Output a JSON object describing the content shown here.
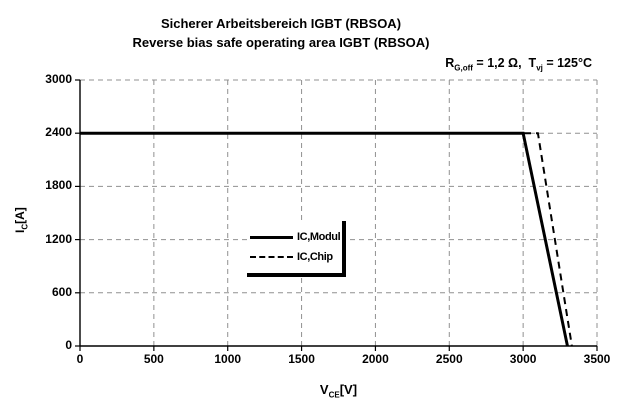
{
  "title": "Sicherer Arbeitsbereich IGBT (RBSOA)",
  "subtitle": "Reverse bias safe operating area IGBT (RBSOA)",
  "annotation": {
    "r_base": "R",
    "r_sub": "G,off",
    "r_mid": " = 1,2 Ω,",
    "t_base": "T",
    "t_sub": "vj",
    "t_end": " = 125°C"
  },
  "axis_labels": {
    "y_base": "I",
    "y_sub": "C",
    "y_rest": "[A]",
    "x_base": "V",
    "x_sub": "CE",
    "x_rest": "[V]"
  },
  "legend": {
    "items": [
      {
        "label": "IC,Modul",
        "style": "solid"
      },
      {
        "label": "IC,Chip",
        "style": "dashed"
      }
    ]
  },
  "colors": {
    "line": "#000000",
    "grid": "#909090",
    "background": "#ffffff",
    "text": "#000000"
  },
  "chart_data": {
    "type": "line",
    "title": "Sicherer Arbeitsbereich IGBT (RBSOA)",
    "subtitle": "Reverse bias safe operating area IGBT (RBSOA)",
    "annotation": "R_G,off = 1,2 Ω, T_vj = 125°C",
    "xlabel": "VCE [V]",
    "ylabel": "IC [A]",
    "xlim": [
      0,
      3500
    ],
    "ylim": [
      0,
      3000
    ],
    "x_ticks": [
      0,
      500,
      1000,
      1500,
      2000,
      2500,
      3000,
      3500
    ],
    "y_ticks": [
      0,
      600,
      1200,
      1800,
      2400,
      3000
    ],
    "grid": true,
    "grid_style": "dashed",
    "legend_position": "center",
    "series": [
      {
        "name": "IC,Modul",
        "style": "solid",
        "points": [
          [
            0,
            2400
          ],
          [
            3000,
            2400
          ],
          [
            3300,
            0
          ]
        ]
      },
      {
        "name": "IC,Chip",
        "style": "dashed",
        "points": [
          [
            0,
            2400
          ],
          [
            3100,
            2400
          ],
          [
            3330,
            0
          ]
        ]
      }
    ]
  }
}
